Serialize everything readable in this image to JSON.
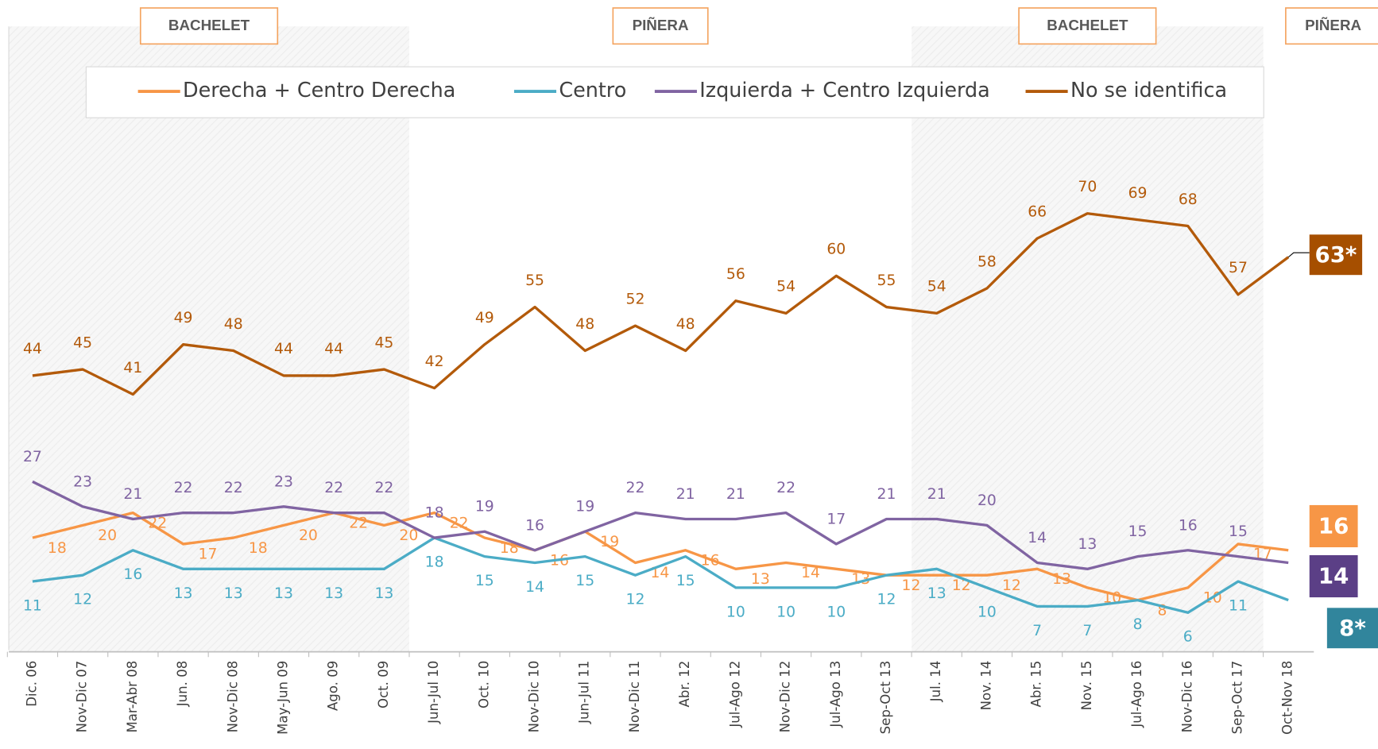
{
  "chart_data": {
    "type": "line",
    "categories": [
      "Dic. 06",
      "Nov-Dic 07",
      "Mar-Abr 08",
      "Jun. 08",
      "Nov-Dic 08",
      "May-Jun 09",
      "Ago. 09",
      "Oct. 09",
      "Jun-Jul 10",
      "Oct. 10",
      "Nov-Dic 10",
      "Jun-Jul 11",
      "Nov-Dic 11",
      "Abr. 12",
      "Jul-Ago 12",
      "Nov-Dic 12",
      "Jul-Ago 13",
      "Sep-Oct 13",
      "Jul. 14",
      "Nov. 14",
      "Abr. 15",
      "Nov. 15",
      "Jul-Ago 16",
      "Nov-Dic 16",
      "Sep-Oct 17",
      "Oct-Nov 18"
    ],
    "series": [
      {
        "name": "Derecha + Centro Derecha",
        "color": "#f79646",
        "values": [
          18,
          20,
          22,
          17,
          18,
          20,
          22,
          20,
          22,
          18,
          16,
          19,
          14,
          16,
          13,
          14,
          13,
          12,
          12,
          12,
          13,
          10,
          8,
          10,
          17,
          16
        ]
      },
      {
        "name": "Centro",
        "color": "#4bacc6",
        "values": [
          11,
          12,
          16,
          13,
          13,
          13,
          13,
          13,
          18,
          15,
          14,
          15,
          12,
          15,
          10,
          10,
          10,
          12,
          13,
          10,
          7,
          7,
          8,
          6,
          11,
          8
        ],
        "value_labels": [
          "11",
          "12",
          "16",
          "13",
          "13",
          "13",
          "13",
          "13",
          "18",
          "15",
          "14",
          "15",
          "12",
          "15",
          "10",
          "10",
          "10",
          "12",
          "13",
          "10",
          "7",
          "7",
          "8",
          "6",
          "11",
          "8*"
        ]
      },
      {
        "name": "Izquierda + Centro Izquierda",
        "color": "#8064a2",
        "values": [
          27,
          23,
          21,
          22,
          22,
          23,
          22,
          22,
          18,
          19,
          16,
          19,
          22,
          21,
          21,
          22,
          17,
          21,
          21,
          20,
          14,
          13,
          15,
          16,
          15,
          14
        ]
      },
      {
        "name": "No se identifica",
        "color": "#b35a0a",
        "values": [
          44,
          45,
          41,
          49,
          48,
          44,
          44,
          45,
          42,
          49,
          55,
          48,
          52,
          48,
          56,
          54,
          60,
          55,
          54,
          58,
          66,
          70,
          69,
          68,
          57,
          63
        ],
        "value_labels": [
          "44",
          "45",
          "41",
          "49",
          "48",
          "44",
          "44",
          "45",
          "42",
          "49",
          "55",
          "48",
          "52",
          "48",
          "56",
          "54",
          "60",
          "55",
          "54",
          "58",
          "66",
          "70",
          "69",
          "68",
          "57",
          "63*"
        ]
      }
    ],
    "end_label_colors": [
      "#f79646",
      "#31859c",
      "#5b3f86",
      "#a64f00"
    ],
    "periods": [
      {
        "label": "BACHELET",
        "start": 0,
        "end": 7,
        "shaded": true
      },
      {
        "label": "PIÑERA",
        "start": 8,
        "end": 17,
        "shaded": false
      },
      {
        "label": "BACHELET",
        "start": 18,
        "end": 24,
        "shaded": true
      },
      {
        "label": "PIÑERA",
        "start": 25,
        "end": 25,
        "shaded": false
      }
    ],
    "ylim": [
      0,
      100
    ]
  }
}
